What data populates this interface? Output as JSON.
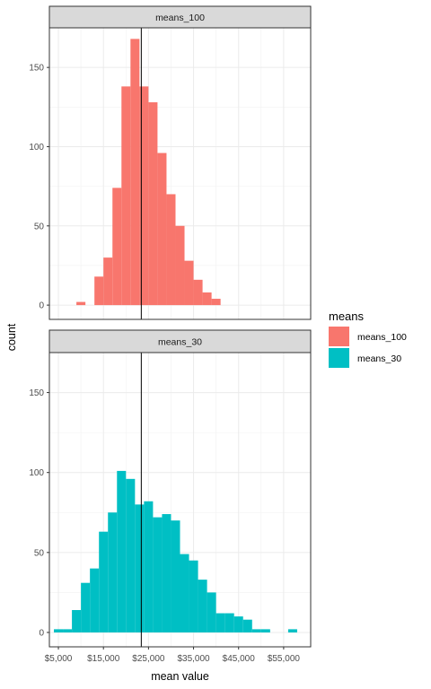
{
  "chart_data": {
    "type": "bar",
    "subtype": "faceted-histogram",
    "xlabel": "mean value",
    "ylabel": "count",
    "x_ticks": [
      5000,
      15000,
      25000,
      35000,
      45000,
      55000
    ],
    "x_tick_labels": [
      "$5,000",
      "$15,000",
      "$25,000",
      "$35,000",
      "$45,000",
      "$55,000"
    ],
    "xlim": [
      3000,
      61000
    ],
    "y_ticks": [
      0,
      50,
      100,
      150
    ],
    "y_tick_labels": [
      "0",
      "50",
      "100",
      "150"
    ],
    "ylim": [
      -9,
      175
    ],
    "bin_width": 2000,
    "vline_x": 23400,
    "grid": true,
    "legend": {
      "title": "means",
      "position": "right",
      "items": [
        {
          "label": "means_100",
          "color": "#F8766D"
        },
        {
          "label": "means_30",
          "color": "#00BFC4"
        }
      ]
    },
    "panels": [
      {
        "name": "means_100",
        "color": "#F8766D",
        "bins": [
          {
            "x": 10000,
            "count": 2
          },
          {
            "x": 14000,
            "count": 18
          },
          {
            "x": 16000,
            "count": 30
          },
          {
            "x": 18000,
            "count": 74
          },
          {
            "x": 20000,
            "count": 138
          },
          {
            "x": 22000,
            "count": 168
          },
          {
            "x": 24000,
            "count": 138
          },
          {
            "x": 26000,
            "count": 128
          },
          {
            "x": 28000,
            "count": 96
          },
          {
            "x": 30000,
            "count": 70
          },
          {
            "x": 32000,
            "count": 50
          },
          {
            "x": 34000,
            "count": 28
          },
          {
            "x": 36000,
            "count": 16
          },
          {
            "x": 38000,
            "count": 8
          },
          {
            "x": 40000,
            "count": 4
          }
        ]
      },
      {
        "name": "means_30",
        "color": "#00BFC4",
        "bins": [
          {
            "x": 5000,
            "count": 2
          },
          {
            "x": 7000,
            "count": 2
          },
          {
            "x": 9000,
            "count": 14
          },
          {
            "x": 11000,
            "count": 31
          },
          {
            "x": 13000,
            "count": 40
          },
          {
            "x": 15000,
            "count": 63
          },
          {
            "x": 17000,
            "count": 75
          },
          {
            "x": 19000,
            "count": 101
          },
          {
            "x": 21000,
            "count": 96
          },
          {
            "x": 23000,
            "count": 80
          },
          {
            "x": 25000,
            "count": 82
          },
          {
            "x": 27000,
            "count": 72
          },
          {
            "x": 29000,
            "count": 74
          },
          {
            "x": 31000,
            "count": 70
          },
          {
            "x": 33000,
            "count": 49
          },
          {
            "x": 35000,
            "count": 45
          },
          {
            "x": 37000,
            "count": 33
          },
          {
            "x": 39000,
            "count": 25
          },
          {
            "x": 41000,
            "count": 12
          },
          {
            "x": 43000,
            "count": 12
          },
          {
            "x": 45000,
            "count": 10
          },
          {
            "x": 47000,
            "count": 8
          },
          {
            "x": 49000,
            "count": 2
          },
          {
            "x": 51000,
            "count": 2
          },
          {
            "x": 53000,
            "count": 0
          },
          {
            "x": 55000,
            "count": 0
          },
          {
            "x": 57000,
            "count": 2
          },
          {
            "x": 59000,
            "count": 0
          }
        ]
      }
    ]
  }
}
